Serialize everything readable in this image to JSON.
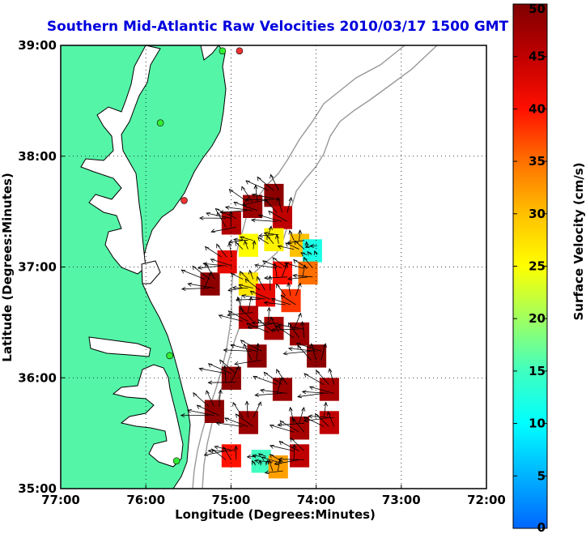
{
  "chart_data": {
    "type": "map",
    "title": "Southern Mid-Atlantic Raw Velocities 2010/03/17 1500 GMT",
    "xlabel": "Longitude (Degrees:Minutes)",
    "ylabel": "Latitude (Degrees:Minutes)",
    "xlim": [
      -77,
      -72
    ],
    "ylim": [
      35,
      39
    ],
    "x_ticks": [
      {
        "value": -77,
        "label": "77:00"
      },
      {
        "value": -76,
        "label": "76:00"
      },
      {
        "value": -75,
        "label": "75:00"
      },
      {
        "value": -74,
        "label": "74:00"
      },
      {
        "value": -73,
        "label": "73:00"
      },
      {
        "value": -72,
        "label": "72:00"
      }
    ],
    "y_ticks": [
      {
        "value": 35,
        "label": "35:00"
      },
      {
        "value": 36,
        "label": "36:00"
      },
      {
        "value": 37,
        "label": "37:00"
      },
      {
        "value": 38,
        "label": "38:00"
      },
      {
        "value": 39,
        "label": "39:00"
      }
    ],
    "grid": true,
    "colorbar": {
      "label": "Surface Velocity (cm/s)",
      "range": [
        0,
        50
      ],
      "ticks": [
        {
          "value": 0,
          "label": "0"
        },
        {
          "value": 5,
          "label": "5"
        },
        {
          "value": 10,
          "label": "10"
        },
        {
          "value": 15,
          "label": "15"
        },
        {
          "value": 20,
          "label": "20"
        },
        {
          "value": 25,
          "label": "25"
        },
        {
          "value": 30,
          "label": "30"
        },
        {
          "value": 35,
          "label": "35"
        },
        {
          "value": 40,
          "label": "40"
        },
        {
          "value": 45,
          "label": "45"
        },
        {
          "value": 50,
          "label": "50"
        }
      ]
    },
    "colors": {
      "land": "#55f5a8",
      "water": "#ffffff",
      "bathymetry": "#999999",
      "station_active": "#33ee33",
      "station_alt": "#ee3333",
      "title": "#0000dd"
    },
    "stations": [
      {
        "lon": -75.1,
        "lat": 38.95,
        "status": "active"
      },
      {
        "lon": -74.9,
        "lat": 38.95,
        "status": "alt"
      },
      {
        "lon": -75.83,
        "lat": 38.3,
        "status": "active"
      },
      {
        "lon": -75.55,
        "lat": 37.6,
        "status": "alt"
      },
      {
        "lon": -75.72,
        "lat": 36.2,
        "status": "active"
      },
      {
        "lon": -75.64,
        "lat": 35.25,
        "status": "active"
      }
    ],
    "velocity_cells": [
      {
        "lon": -74.5,
        "lat": 37.65,
        "speed": 49
      },
      {
        "lon": -74.75,
        "lat": 37.55,
        "speed": 48
      },
      {
        "lon": -74.4,
        "lat": 37.45,
        "speed": 45
      },
      {
        "lon": -74.2,
        "lat": 37.2,
        "speed": 30
      },
      {
        "lon": -74.05,
        "lat": 37.15,
        "speed": 12
      },
      {
        "lon": -74.5,
        "lat": 37.25,
        "speed": 26
      },
      {
        "lon": -74.8,
        "lat": 37.2,
        "speed": 25
      },
      {
        "lon": -75.0,
        "lat": 37.4,
        "speed": 46
      },
      {
        "lon": -74.4,
        "lat": 36.95,
        "speed": 40
      },
      {
        "lon": -74.1,
        "lat": 36.95,
        "speed": 35
      },
      {
        "lon": -74.8,
        "lat": 36.85,
        "speed": 27
      },
      {
        "lon": -74.6,
        "lat": 36.75,
        "speed": 42
      },
      {
        "lon": -74.3,
        "lat": 36.7,
        "speed": 38
      },
      {
        "lon": -74.8,
        "lat": 36.55,
        "speed": 46
      },
      {
        "lon": -74.5,
        "lat": 36.45,
        "speed": 47
      },
      {
        "lon": -74.2,
        "lat": 36.4,
        "speed": 48
      },
      {
        "lon": -74.0,
        "lat": 36.2,
        "speed": 49
      },
      {
        "lon": -74.7,
        "lat": 36.2,
        "speed": 49
      },
      {
        "lon": -75.0,
        "lat": 36.0,
        "speed": 49
      },
      {
        "lon": -74.4,
        "lat": 35.9,
        "speed": 48
      },
      {
        "lon": -73.85,
        "lat": 35.9,
        "speed": 47
      },
      {
        "lon": -75.2,
        "lat": 35.7,
        "speed": 49
      },
      {
        "lon": -74.8,
        "lat": 35.6,
        "speed": 48
      },
      {
        "lon": -74.2,
        "lat": 35.55,
        "speed": 47
      },
      {
        "lon": -73.85,
        "lat": 35.6,
        "speed": 45
      },
      {
        "lon": -75.0,
        "lat": 35.3,
        "speed": 40
      },
      {
        "lon": -74.65,
        "lat": 35.25,
        "speed": 15
      },
      {
        "lon": -74.45,
        "lat": 35.2,
        "speed": 32
      },
      {
        "lon": -74.2,
        "lat": 35.3,
        "speed": 45
      },
      {
        "lon": -75.25,
        "lat": 36.85,
        "speed": 49
      },
      {
        "lon": -75.05,
        "lat": 37.05,
        "speed": 42
      }
    ]
  }
}
